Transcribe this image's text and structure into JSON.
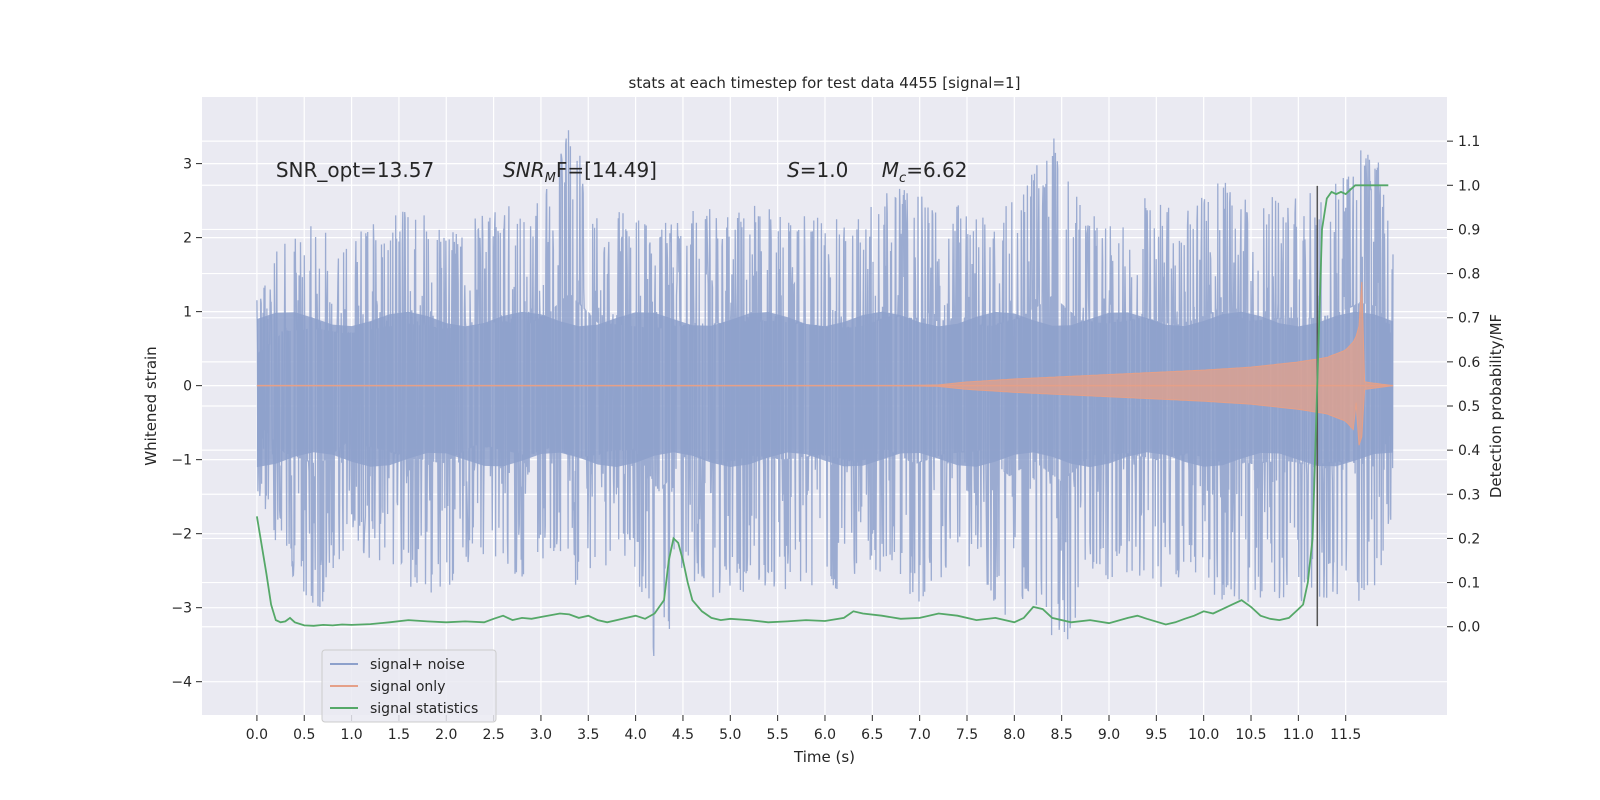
{
  "chart_data": {
    "type": "line",
    "title": "stats at each timestep for test data 4455 [signal=1]",
    "xlabel": "Time (s)",
    "ylabel_left": "Whitened strain",
    "ylabel_right": "Detection probability/MF",
    "xlim": [
      -0.58,
      12.57
    ],
    "ylim_left": [
      -4.45,
      3.9
    ],
    "ylim_right": [
      -0.2,
      1.2
    ],
    "x_ticks": [
      0.0,
      0.5,
      1.0,
      1.5,
      2.0,
      2.5,
      3.0,
      3.5,
      4.0,
      4.5,
      5.0,
      5.5,
      6.0,
      6.5,
      7.0,
      7.5,
      8.0,
      8.5,
      9.0,
      9.5,
      10.0,
      10.5,
      11.0,
      11.5
    ],
    "x_tick_labels": [
      "0.0",
      "0.5",
      "1.0",
      "1.5",
      "2.0",
      "2.5",
      "3.0",
      "3.5",
      "4.0",
      "4.5",
      "5.0",
      "5.5",
      "6.0",
      "6.5",
      "7.0",
      "7.5",
      "8.0",
      "8.5",
      "9.0",
      "9.5",
      "10.0",
      "10.5",
      "11.0",
      "11.5"
    ],
    "y_left_ticks": [
      -4,
      -3,
      -2,
      -1,
      0,
      1,
      2,
      3
    ],
    "y_left_tick_labels": [
      "−4",
      "−3",
      "−2",
      "−1",
      "0",
      "1",
      "2",
      "3"
    ],
    "y_right_ticks": [
      0.0,
      0.1,
      0.2,
      0.3,
      0.4,
      0.5,
      0.6,
      0.7,
      0.8,
      0.9,
      1.0,
      1.1
    ],
    "y_right_tick_labels": [
      "0.0",
      "0.1",
      "0.2",
      "0.3",
      "0.4",
      "0.5",
      "0.6",
      "0.7",
      "0.8",
      "0.9",
      "1.0",
      "1.1"
    ],
    "grid": true,
    "annotations": [
      {
        "text": "SNR_opt=13.57",
        "x": 0.2,
        "y": 2.82,
        "math": false
      },
      {
        "text": "SNR",
        "sub": "M",
        "suffix": "F=[14.49]",
        "x": 2.6,
        "y": 2.82,
        "math": true
      },
      {
        "text": "S",
        "sub": "",
        "suffix": "=1.0",
        "x": 5.6,
        "y": 2.82,
        "math": true
      },
      {
        "text": "M",
        "sub": "c",
        "suffix": "=6.62",
        "x": 6.6,
        "y": 2.82,
        "math": true
      }
    ],
    "series": [
      {
        "name": "signal+ noise",
        "color": "#8da0cb",
        "axis": "left",
        "duration": 12.0,
        "upper_envelope": [
          [
            0.0,
            1.2
          ],
          [
            0.3,
            2.1
          ],
          [
            0.65,
            2.2
          ],
          [
            0.95,
            2.0
          ],
          [
            1.25,
            2.2
          ],
          [
            1.6,
            2.4
          ],
          [
            1.95,
            2.2
          ],
          [
            2.3,
            2.3
          ],
          [
            2.55,
            2.5
          ],
          [
            2.85,
            2.35
          ],
          [
            3.1,
            2.85
          ],
          [
            3.3,
            3.55
          ],
          [
            3.6,
            2.45
          ],
          [
            3.95,
            2.3
          ],
          [
            4.3,
            2.2
          ],
          [
            4.65,
            2.4
          ],
          [
            5.0,
            2.4
          ],
          [
            5.35,
            2.5
          ],
          [
            5.75,
            2.4
          ],
          [
            6.05,
            2.25
          ],
          [
            6.35,
            2.25
          ],
          [
            6.7,
            2.7
          ],
          [
            7.1,
            2.55
          ],
          [
            7.4,
            2.45
          ],
          [
            7.75,
            2.3
          ],
          [
            8.05,
            2.6
          ],
          [
            8.4,
            3.45
          ],
          [
            8.7,
            2.5
          ],
          [
            9.0,
            2.4
          ],
          [
            9.35,
            2.6
          ],
          [
            9.75,
            2.35
          ],
          [
            10.15,
            2.9
          ],
          [
            10.5,
            2.5
          ],
          [
            10.8,
            2.6
          ],
          [
            11.1,
            2.6
          ],
          [
            11.35,
            2.7
          ],
          [
            11.65,
            3.2
          ],
          [
            11.85,
            3.05
          ],
          [
            12.0,
            1.8
          ]
        ],
        "lower_envelope": [
          [
            0.0,
            -1.4
          ],
          [
            0.3,
            -2.6
          ],
          [
            0.65,
            -3.05
          ],
          [
            0.95,
            -2.2
          ],
          [
            1.25,
            -2.4
          ],
          [
            1.6,
            -2.75
          ],
          [
            1.95,
            -3.0
          ],
          [
            2.3,
            -2.3
          ],
          [
            2.6,
            -2.45
          ],
          [
            2.85,
            -2.7
          ],
          [
            3.1,
            -2.4
          ],
          [
            3.4,
            -2.8
          ],
          [
            3.75,
            -2.5
          ],
          [
            4.0,
            -2.5
          ],
          [
            4.25,
            -4.1
          ],
          [
            4.55,
            -2.6
          ],
          [
            4.9,
            -3.0
          ],
          [
            5.25,
            -2.7
          ],
          [
            5.6,
            -2.85
          ],
          [
            5.95,
            -2.65
          ],
          [
            6.35,
            -2.95
          ],
          [
            6.65,
            -2.45
          ],
          [
            6.95,
            -3.0
          ],
          [
            7.3,
            -2.6
          ],
          [
            7.65,
            -2.5
          ],
          [
            7.95,
            -3.5
          ],
          [
            8.2,
            -2.9
          ],
          [
            8.5,
            -3.7
          ],
          [
            8.8,
            -2.7
          ],
          [
            9.15,
            -2.6
          ],
          [
            9.5,
            -2.85
          ],
          [
            9.85,
            -2.6
          ],
          [
            10.15,
            -2.9
          ],
          [
            10.5,
            -3.0
          ],
          [
            10.85,
            -2.9
          ],
          [
            11.15,
            -3.05
          ],
          [
            11.5,
            -2.9
          ],
          [
            11.8,
            -3.1
          ],
          [
            12.0,
            -1.7
          ]
        ]
      },
      {
        "name": "signal only",
        "color": "#e5a088",
        "axis": "left",
        "envelope": [
          [
            0.0,
            0.0
          ],
          [
            6.8,
            0.0
          ],
          [
            7.2,
            0.01
          ],
          [
            7.5,
            0.05
          ],
          [
            8.0,
            0.09
          ],
          [
            8.5,
            0.12
          ],
          [
            9.0,
            0.15
          ],
          [
            9.5,
            0.18
          ],
          [
            10.0,
            0.21
          ],
          [
            10.5,
            0.25
          ],
          [
            11.0,
            0.32
          ],
          [
            11.3,
            0.38
          ],
          [
            11.5,
            0.48
          ],
          [
            11.6,
            0.62
          ],
          [
            11.65,
            0.85
          ],
          [
            11.67,
            1.4
          ],
          [
            11.7,
            0.05
          ],
          [
            12.0,
            0.0
          ]
        ],
        "lower_peak_y": -1.15
      },
      {
        "name": "signal statistics",
        "color": "#55a868",
        "axis": "right",
        "x": [
          0.0,
          0.1,
          0.15,
          0.2,
          0.25,
          0.3,
          0.35,
          0.4,
          0.5,
          0.6,
          0.7,
          0.8,
          0.9,
          1.0,
          1.2,
          1.4,
          1.6,
          1.8,
          2.0,
          2.2,
          2.4,
          2.5,
          2.6,
          2.7,
          2.8,
          2.9,
          3.0,
          3.2,
          3.3,
          3.4,
          3.5,
          3.6,
          3.7,
          3.8,
          3.9,
          4.0,
          4.1,
          4.2,
          4.3,
          4.35,
          4.4,
          4.45,
          4.5,
          4.55,
          4.6,
          4.7,
          4.8,
          4.9,
          5.0,
          5.2,
          5.4,
          5.6,
          5.8,
          6.0,
          6.2,
          6.3,
          6.4,
          6.6,
          6.8,
          7.0,
          7.2,
          7.4,
          7.6,
          7.8,
          8.0,
          8.1,
          8.2,
          8.3,
          8.4,
          8.6,
          8.8,
          9.0,
          9.2,
          9.3,
          9.4,
          9.6,
          9.7,
          9.8,
          9.9,
          10.0,
          10.1,
          10.2,
          10.3,
          10.4,
          10.5,
          10.6,
          10.7,
          10.8,
          10.9,
          11.0,
          11.05,
          11.1,
          11.15,
          11.2,
          11.25,
          11.3,
          11.35,
          11.4,
          11.45,
          11.5,
          11.55,
          11.6,
          11.7,
          11.8,
          11.9,
          11.95
        ],
        "y": [
          0.25,
          0.12,
          0.05,
          0.015,
          0.01,
          0.012,
          0.02,
          0.01,
          0.003,
          0.002,
          0.004,
          0.003,
          0.005,
          0.004,
          0.006,
          0.01,
          0.015,
          0.012,
          0.01,
          0.012,
          0.01,
          0.018,
          0.025,
          0.015,
          0.02,
          0.018,
          0.022,
          0.03,
          0.028,
          0.02,
          0.025,
          0.015,
          0.01,
          0.015,
          0.02,
          0.025,
          0.018,
          0.03,
          0.06,
          0.15,
          0.2,
          0.19,
          0.15,
          0.1,
          0.06,
          0.035,
          0.02,
          0.015,
          0.018,
          0.015,
          0.01,
          0.012,
          0.015,
          0.013,
          0.02,
          0.035,
          0.03,
          0.025,
          0.018,
          0.02,
          0.03,
          0.025,
          0.015,
          0.02,
          0.01,
          0.02,
          0.045,
          0.04,
          0.02,
          0.01,
          0.015,
          0.008,
          0.02,
          0.025,
          0.018,
          0.005,
          0.01,
          0.018,
          0.025,
          0.035,
          0.03,
          0.04,
          0.05,
          0.06,
          0.045,
          0.025,
          0.018,
          0.015,
          0.02,
          0.04,
          0.05,
          0.1,
          0.2,
          0.55,
          0.9,
          0.97,
          0.985,
          0.98,
          0.985,
          0.98,
          0.99,
          1.0,
          1.0,
          1.0,
          1.0,
          1.0
        ]
      }
    ],
    "vertical_line": {
      "x": 11.2,
      "ymin": -3.25,
      "ymax": 2.7,
      "color": "#555555"
    },
    "legend": {
      "placement": "lower-left",
      "entries": [
        {
          "label": "signal+ noise",
          "color": "#8da0cb"
        },
        {
          "label": "signal only",
          "color": "#e5a088"
        },
        {
          "label": "signal statistics",
          "color": "#55a868"
        }
      ]
    }
  }
}
